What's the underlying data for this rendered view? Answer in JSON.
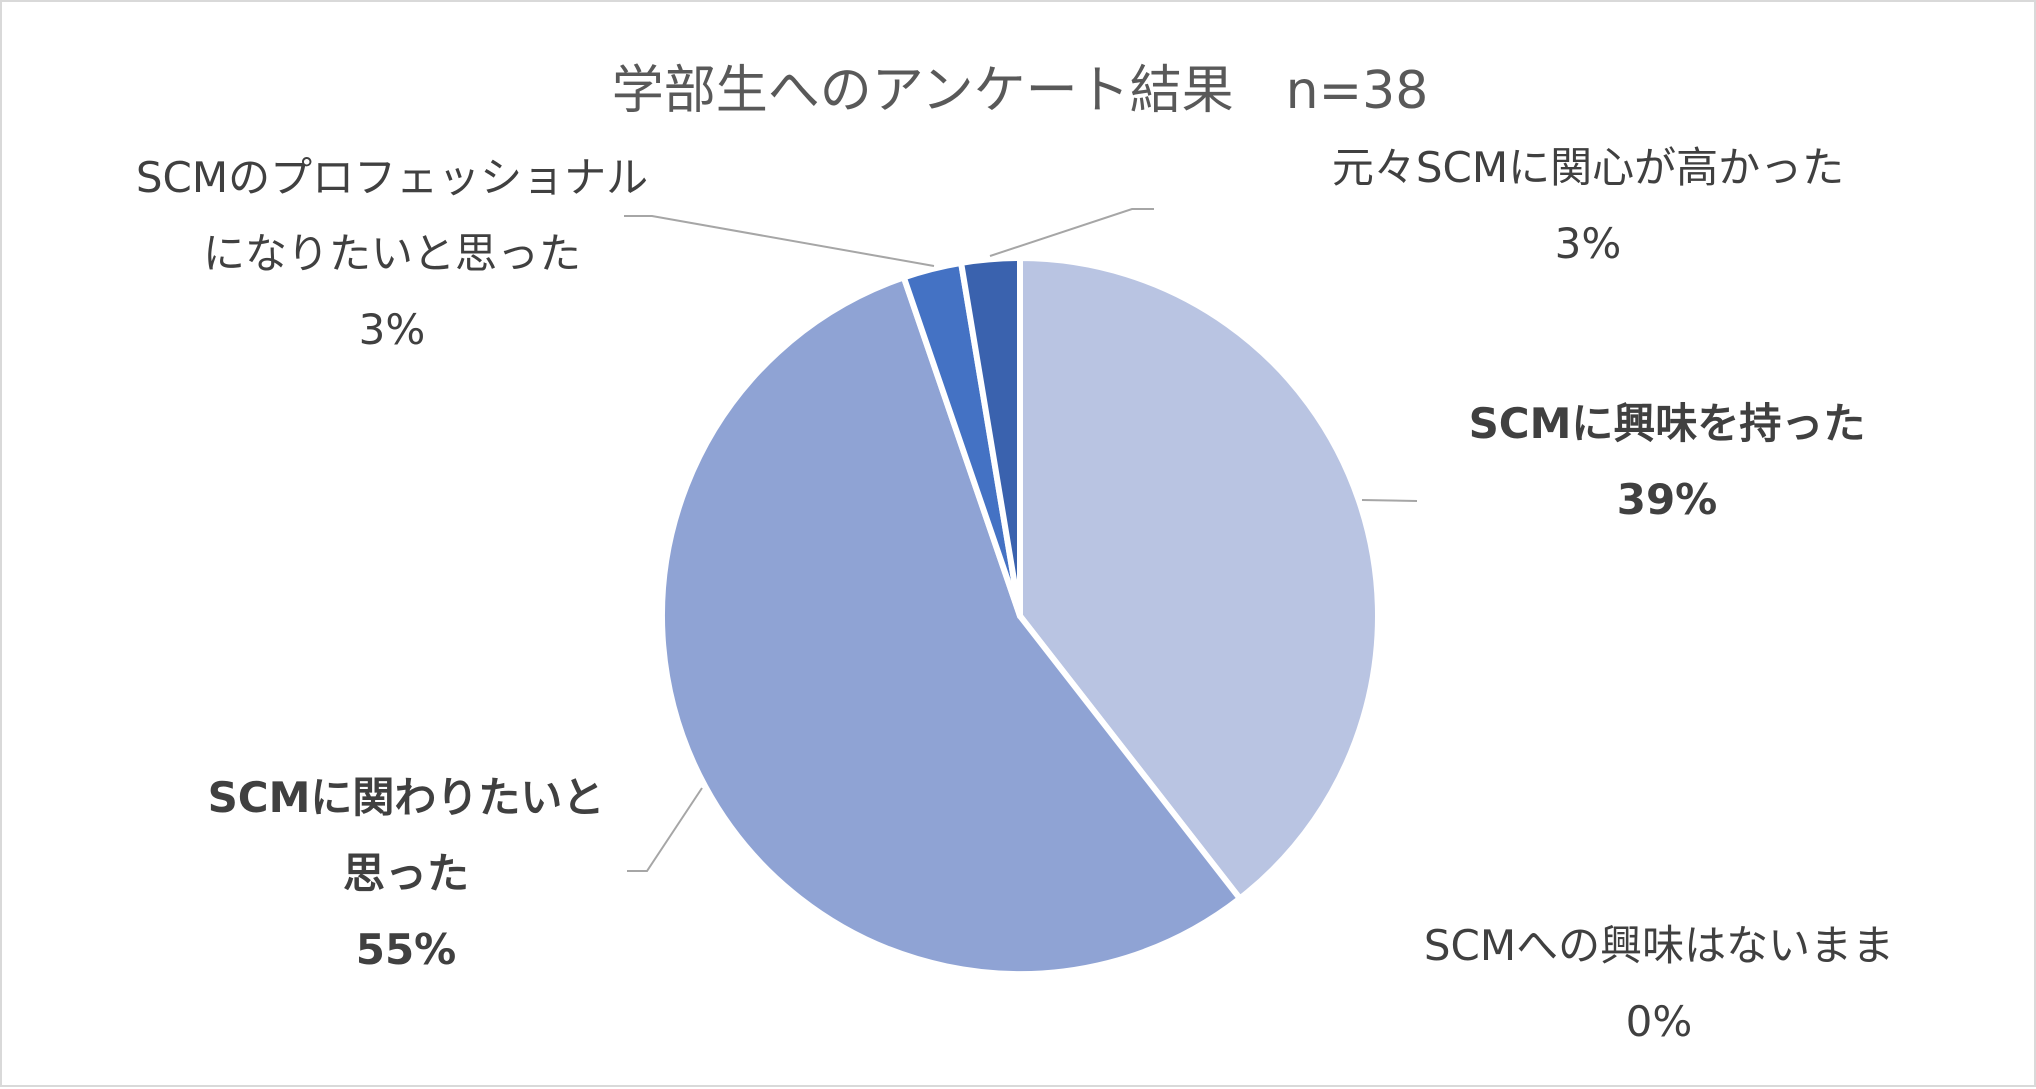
{
  "chart_data": {
    "type": "pie",
    "title": "学部生へのアンケート結果　n=38",
    "slices": [
      {
        "label": [
          "SCMに興味を持った"
        ],
        "value_label": "39%",
        "value": 39.47,
        "color": "#b9c4e2",
        "bold": true
      },
      {
        "label": [
          "SCMへの興味はないまま"
        ],
        "value_label": "0%",
        "value": 0,
        "color": "#ffffff",
        "bold": false
      },
      {
        "label": [
          "SCMに関わりたいと",
          "思った"
        ],
        "value_label": "55%",
        "value": 55.26,
        "color": "#8fa3d4",
        "bold": true
      },
      {
        "label": [
          "SCMのプロフェッショナル",
          "になりたいと思った"
        ],
        "value_label": "3%",
        "value": 2.63,
        "color": "#4472c4",
        "bold": false
      },
      {
        "label": [
          "元々SCMに関心が高かった"
        ],
        "value_label": "3%",
        "value": 2.63,
        "color": "#3a62ae",
        "bold": false
      }
    ],
    "start_angle": "12 o'clock",
    "direction": "clockwise",
    "legend": "none",
    "data_labels": "outside with leader lines"
  }
}
